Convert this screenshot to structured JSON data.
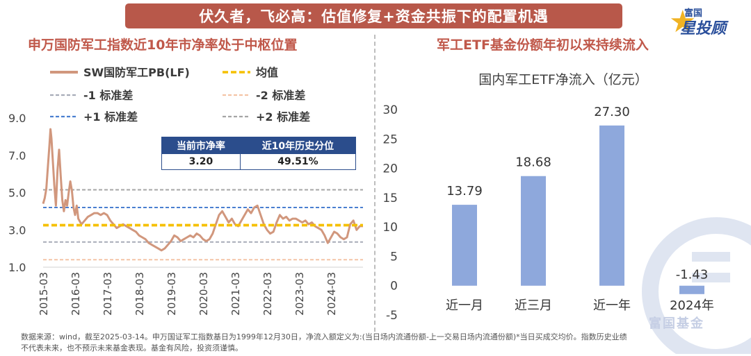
{
  "banner": {
    "title": "伏久者，飞必高：估值修复+资金共振下的配置机遇"
  },
  "logo": {
    "small": "富国",
    "big": "星投顾"
  },
  "left_panel": {
    "title": "申万国防军工指数近10年市净率处于中枢位置"
  },
  "right_panel": {
    "title": "军工ETF基金份额年初以来持续流入"
  },
  "stat_table": {
    "headers": [
      "当前市净率",
      "近10年历史分位"
    ],
    "values": [
      "3.20",
      "49.51%"
    ]
  },
  "watermark": {
    "text": "富国基金"
  },
  "footer": {
    "line1": "数据来源：wind，截至2025-03-14。申万国证军工指数基日为1999年12月30日，净流入额定义为:(当日场内流通份额-上一交易日场内流通份额)*当日买成交均价。指数历史业绩",
    "line2": "不代表未来，也不预示未来基金表现。基金有风险，投资须谨慎。"
  },
  "chart_data": [
    {
      "type": "line",
      "title": "",
      "yticks": [
        "9.0",
        "7.0",
        "5.0",
        "3.0",
        "1.0"
      ],
      "ylim": [
        1.0,
        9.0
      ],
      "x_categories": [
        "2015-03",
        "2016-03",
        "2017-03",
        "2018-03",
        "2019-03",
        "2020-03",
        "2021-03",
        "2022-03",
        "2023-03",
        "2024-03"
      ],
      "legend": [
        {
          "name": "SW国防军工PB(LF)",
          "color": "#d1977d",
          "style": "solid"
        },
        {
          "name": "均值",
          "color": "#f5c000",
          "style": "dash"
        },
        {
          "name": "-1 标准差",
          "color": "#a7acb8",
          "style": "dash"
        },
        {
          "name": "-2 标准差",
          "color": "#f4c4a6",
          "style": "dash"
        },
        {
          "name": "+1 标准差",
          "color": "#4a7fd0",
          "style": "dash"
        },
        {
          "name": "+2 标准差",
          "color": "#a6a6a6",
          "style": "dash"
        }
      ],
      "reference_lines": {
        "mean": 3.25,
        "minus1": 2.35,
        "minus2": 1.4,
        "plus1": 4.2,
        "plus2": 5.15
      },
      "series": [
        {
          "name": "SW国防军工PB(LF)",
          "x": [
            2015.2,
            2015.25,
            2015.3,
            2015.35,
            2015.4,
            2015.43,
            2015.46,
            2015.5,
            2015.55,
            2015.6,
            2015.65,
            2015.7,
            2015.75,
            2015.8,
            2015.85,
            2015.9,
            2015.95,
            2016.0,
            2016.05,
            2016.1,
            2016.15,
            2016.2,
            2016.25,
            2016.3,
            2016.4,
            2016.5,
            2016.6,
            2016.7,
            2016.8,
            2016.9,
            2017.0,
            2017.1,
            2017.2,
            2017.3,
            2017.4,
            2017.5,
            2017.6,
            2017.7,
            2017.8,
            2017.9,
            2018.0,
            2018.1,
            2018.2,
            2018.3,
            2018.4,
            2018.5,
            2018.6,
            2018.7,
            2018.8,
            2018.9,
            2019.0,
            2019.1,
            2019.2,
            2019.3,
            2019.4,
            2019.5,
            2019.6,
            2019.7,
            2019.8,
            2019.9,
            2020.0,
            2020.1,
            2020.2,
            2020.3,
            2020.4,
            2020.5,
            2020.6,
            2020.7,
            2020.8,
            2020.9,
            2021.0,
            2021.1,
            2021.2,
            2021.3,
            2021.4,
            2021.5,
            2021.6,
            2021.7,
            2021.8,
            2021.9,
            2022.0,
            2022.1,
            2022.2,
            2022.3,
            2022.4,
            2022.5,
            2022.6,
            2022.7,
            2022.8,
            2022.9,
            2023.0,
            2023.1,
            2023.2,
            2023.3,
            2023.4,
            2023.5,
            2023.6,
            2023.7,
            2023.8,
            2023.9,
            2024.0,
            2024.1,
            2024.2,
            2024.3,
            2024.4,
            2024.5,
            2024.6,
            2024.7,
            2024.8,
            2024.9,
            2025.0,
            2025.1,
            2025.2
          ],
          "values": [
            4.4,
            4.7,
            5.2,
            6.4,
            7.6,
            8.4,
            7.9,
            6.8,
            5.4,
            4.3,
            6.2,
            7.3,
            5.9,
            4.6,
            4.0,
            4.6,
            4.3,
            5.0,
            5.6,
            5.1,
            4.2,
            3.8,
            4.3,
            3.6,
            3.3,
            3.5,
            3.7,
            3.8,
            3.9,
            3.9,
            3.8,
            3.9,
            3.8,
            3.5,
            3.3,
            3.1,
            3.2,
            3.3,
            3.2,
            3.1,
            3.0,
            2.9,
            2.7,
            2.6,
            2.5,
            2.3,
            2.2,
            2.1,
            2.0,
            1.9,
            2.0,
            2.2,
            2.4,
            2.7,
            2.6,
            2.4,
            2.5,
            2.6,
            2.7,
            2.6,
            2.8,
            2.7,
            2.5,
            2.4,
            2.5,
            2.8,
            3.3,
            3.8,
            4.0,
            3.7,
            3.4,
            3.6,
            3.3,
            3.2,
            3.5,
            3.8,
            4.1,
            3.9,
            4.2,
            4.3,
            3.8,
            3.3,
            3.0,
            2.8,
            2.9,
            3.4,
            3.8,
            3.6,
            3.7,
            3.5,
            3.6,
            3.6,
            3.5,
            3.4,
            3.5,
            3.3,
            3.4,
            3.2,
            3.1,
            3.0,
            2.7,
            2.3,
            2.6,
            2.9,
            2.8,
            2.6,
            2.5,
            2.6,
            3.3,
            3.5,
            3.0,
            3.2,
            3.2
          ]
        }
      ]
    },
    {
      "type": "bar",
      "title": "国内军工ETF净流入（亿元）",
      "categories": [
        "近一月",
        "近三月",
        "近一年",
        "2024年"
      ],
      "values": [
        13.79,
        18.68,
        27.3,
        -1.43
      ],
      "data_labels": [
        "13.79",
        "18.68",
        "27.30",
        "-1.43"
      ],
      "yticks": [
        "30",
        "25",
        "20",
        "15",
        "10",
        "5",
        "0",
        "-5"
      ],
      "ylim": [
        -5,
        30
      ],
      "bar_color": "#8ea8dc"
    }
  ]
}
